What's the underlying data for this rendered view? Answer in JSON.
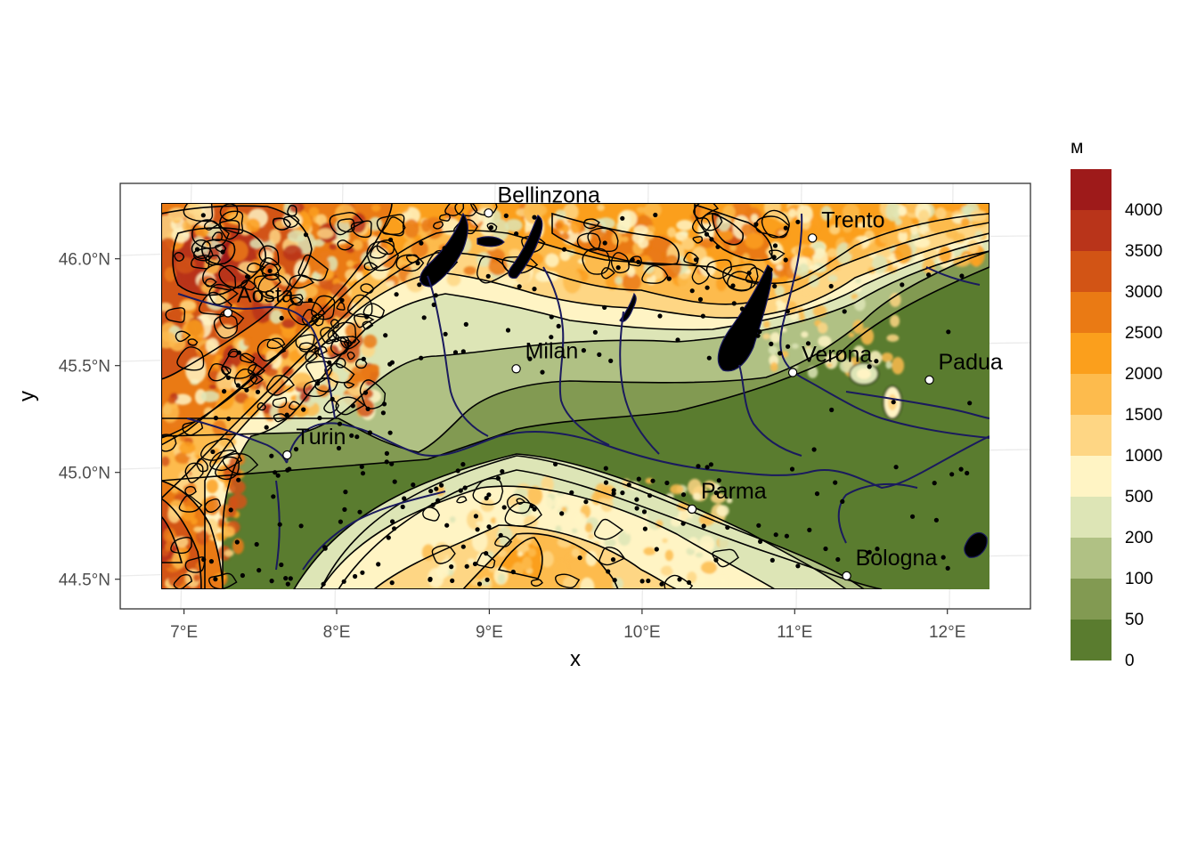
{
  "map": {
    "xlabel": "x",
    "ylabel": "y",
    "x_ticks": [
      "7°E",
      "8°E",
      "9°E",
      "10°E",
      "11°E",
      "12°E"
    ],
    "y_ticks": [
      "44.5°N",
      "45.0°N",
      "45.5°N",
      "46.0°N"
    ],
    "x_tick_values": [
      7,
      8,
      9,
      10,
      11,
      12
    ],
    "y_tick_values": [
      44.5,
      45.0,
      45.5,
      46.0
    ],
    "extent": {
      "lon": [
        6.86,
        12.27
      ],
      "lat": [
        44.43,
        46.24
      ]
    },
    "cities": [
      {
        "name": "Bellinzona",
        "lon": 9.02,
        "lat": 46.19
      },
      {
        "name": "Aosta",
        "lon": 7.32,
        "lat": 45.74
      },
      {
        "name": "Trento",
        "lon": 11.12,
        "lat": 46.07
      },
      {
        "name": "Milan",
        "lon": 9.19,
        "lat": 45.46
      },
      {
        "name": "Verona",
        "lon": 10.99,
        "lat": 45.44
      },
      {
        "name": "Turin",
        "lon": 7.69,
        "lat": 45.07
      },
      {
        "name": "Parma",
        "lon": 10.33,
        "lat": 44.8
      },
      {
        "name": "Bologna",
        "lon": 11.34,
        "lat": 44.49
      },
      {
        "name": "Padua",
        "lon": 11.88,
        "lat": 45.41
      }
    ]
  },
  "legend": {
    "title": "м",
    "labels": [
      "4000",
      "3500",
      "3000",
      "2500",
      "2000",
      "1500",
      "1000",
      "500",
      "200",
      "100",
      "50",
      "0"
    ],
    "colors": [
      "#9e1a1a",
      "#b9341a",
      "#d25415",
      "#ea7a14",
      "#fb9f1c",
      "#fdbb4d",
      "#fed684",
      "#fff4c4",
      "#dde5b6",
      "#b0c184",
      "#829a52",
      "#5a7c2f"
    ]
  },
  "colors": {
    "lakes": "#a6cee3",
    "rivers": "#1a1a5e",
    "contours": "#000000"
  }
}
